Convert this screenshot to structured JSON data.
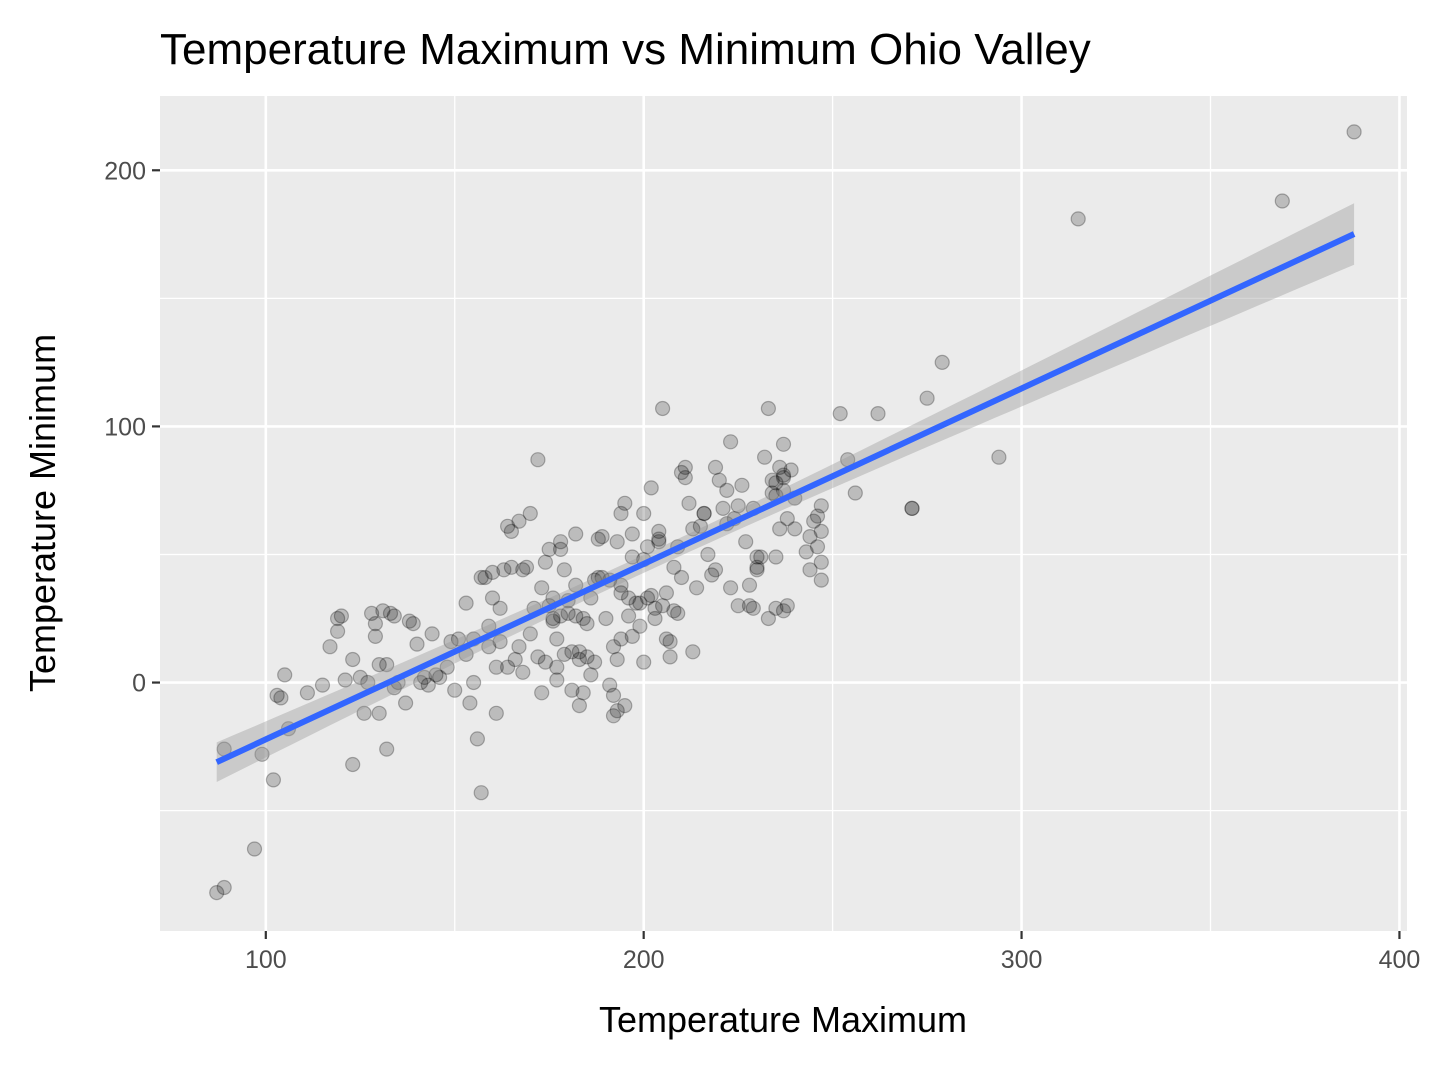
{
  "chart_data": {
    "type": "scatter",
    "title": "Temperature Maximum vs Minimum Ohio Valley",
    "xlabel": "Temperature Maximum",
    "ylabel": "Temperature Minimum",
    "xlim": [
      72,
      402
    ],
    "ylim": [
      -97,
      229
    ],
    "x_ticks": [
      100,
      200,
      300,
      400
    ],
    "x_tick_labels": [
      "100",
      "200",
      "300",
      "400"
    ],
    "y_ticks": [
      0,
      100,
      200
    ],
    "y_tick_labels": [
      "0",
      "100",
      "200"
    ],
    "grid": true,
    "legend": "none",
    "colors": {
      "panel": "#EBEBEB",
      "grid": "#FFFFFF",
      "points": "#000000",
      "fit_line": "#3366FF",
      "confidence_band": "#999999"
    },
    "points_alpha": 0.2,
    "regression": {
      "method": "linear",
      "slope": 0.6851,
      "intercept": -90.7,
      "x_range": [
        87,
        388
      ],
      "band_halfwidth_ends": 12,
      "band_halfwidth_center": 3.5,
      "center_x": 200
    },
    "points": [
      [
        87,
        -82
      ],
      [
        89,
        -80
      ],
      [
        89,
        -26
      ],
      [
        97,
        -65
      ],
      [
        99,
        -28
      ],
      [
        103,
        -5
      ],
      [
        102,
        -38
      ],
      [
        104,
        -6
      ],
      [
        105,
        3
      ],
      [
        106,
        -18
      ],
      [
        111,
        -4
      ],
      [
        115,
        -1
      ],
      [
        117,
        14
      ],
      [
        119,
        20
      ],
      [
        119,
        25
      ],
      [
        120,
        26
      ],
      [
        121,
        1
      ],
      [
        123,
        9
      ],
      [
        123,
        -32
      ],
      [
        125,
        2
      ],
      [
        126,
        -12
      ],
      [
        127,
        0
      ],
      [
        128,
        27
      ],
      [
        129,
        23
      ],
      [
        129,
        18
      ],
      [
        130,
        7
      ],
      [
        130,
        -12
      ],
      [
        131,
        28
      ],
      [
        132,
        -26
      ],
      [
        132,
        7
      ],
      [
        133,
        27
      ],
      [
        134,
        26
      ],
      [
        134,
        -2
      ],
      [
        135,
        0
      ],
      [
        137,
        -8
      ],
      [
        138,
        24
      ],
      [
        139,
        23
      ],
      [
        140,
        15
      ],
      [
        141,
        0
      ],
      [
        142,
        2
      ],
      [
        143,
        -1
      ],
      [
        144,
        19
      ],
      [
        145,
        3
      ],
      [
        146,
        2
      ],
      [
        148,
        6
      ],
      [
        149,
        16
      ],
      [
        150,
        -3
      ],
      [
        151,
        17
      ],
      [
        153,
        31
      ],
      [
        153,
        11
      ],
      [
        154,
        -8
      ],
      [
        155,
        17
      ],
      [
        155,
        0
      ],
      [
        156,
        -22
      ],
      [
        157,
        -43
      ],
      [
        157,
        41
      ],
      [
        158,
        41
      ],
      [
        159,
        22
      ],
      [
        159,
        14
      ],
      [
        160,
        33
      ],
      [
        160,
        43
      ],
      [
        161,
        -12
      ],
      [
        161,
        6
      ],
      [
        162,
        29
      ],
      [
        162,
        16
      ],
      [
        163,
        44
      ],
      [
        164,
        6
      ],
      [
        164,
        61
      ],
      [
        165,
        59
      ],
      [
        165,
        45
      ],
      [
        166,
        9
      ],
      [
        167,
        63
      ],
      [
        167,
        14
      ],
      [
        168,
        44
      ],
      [
        168,
        4
      ],
      [
        169,
        45
      ],
      [
        170,
        66
      ],
      [
        170,
        19
      ],
      [
        171,
        29
      ],
      [
        172,
        10
      ],
      [
        172,
        87
      ],
      [
        173,
        37
      ],
      [
        173,
        -4
      ],
      [
        174,
        8
      ],
      [
        174,
        47
      ],
      [
        175,
        52
      ],
      [
        175,
        30
      ],
      [
        176,
        25
      ],
      [
        176,
        33
      ],
      [
        176,
        24
      ],
      [
        177,
        6
      ],
      [
        177,
        17
      ],
      [
        177,
        1
      ],
      [
        178,
        55
      ],
      [
        178,
        52
      ],
      [
        178,
        26
      ],
      [
        179,
        44
      ],
      [
        179,
        11
      ],
      [
        180,
        27
      ],
      [
        180,
        32
      ],
      [
        181,
        -3
      ],
      [
        181,
        12
      ],
      [
        182,
        38
      ],
      [
        182,
        58
      ],
      [
        182,
        26
      ],
      [
        183,
        -9
      ],
      [
        183,
        9
      ],
      [
        183,
        12
      ],
      [
        184,
        25
      ],
      [
        184,
        -4
      ],
      [
        185,
        23
      ],
      [
        185,
        10
      ],
      [
        186,
        33
      ],
      [
        186,
        3
      ],
      [
        187,
        40
      ],
      [
        187,
        8
      ],
      [
        188,
        56
      ],
      [
        188,
        41
      ],
      [
        189,
        57
      ],
      [
        189,
        41
      ],
      [
        190,
        25
      ],
      [
        191,
        40
      ],
      [
        191,
        -1
      ],
      [
        192,
        -5
      ],
      [
        192,
        -13
      ],
      [
        192,
        14
      ],
      [
        193,
        55
      ],
      [
        193,
        9
      ],
      [
        193,
        -11
      ],
      [
        194,
        66
      ],
      [
        194,
        38
      ],
      [
        194,
        35
      ],
      [
        194,
        17
      ],
      [
        195,
        70
      ],
      [
        195,
        -9
      ],
      [
        196,
        26
      ],
      [
        196,
        33
      ],
      [
        197,
        58
      ],
      [
        197,
        49
      ],
      [
        197,
        18
      ],
      [
        198,
        31
      ],
      [
        199,
        31
      ],
      [
        199,
        22
      ],
      [
        200,
        8
      ],
      [
        200,
        48
      ],
      [
        200,
        66
      ],
      [
        201,
        53
      ],
      [
        201,
        33
      ],
      [
        202,
        76
      ],
      [
        202,
        34
      ],
      [
        203,
        29
      ],
      [
        203,
        25
      ],
      [
        204,
        59
      ],
      [
        204,
        56
      ],
      [
        204,
        55
      ],
      [
        205,
        30
      ],
      [
        205,
        107
      ],
      [
        206,
        35
      ],
      [
        206,
        17
      ],
      [
        207,
        10
      ],
      [
        207,
        16
      ],
      [
        208,
        28
      ],
      [
        208,
        45
      ],
      [
        209,
        53
      ],
      [
        209,
        27
      ],
      [
        210,
        41
      ],
      [
        210,
        82
      ],
      [
        211,
        84
      ],
      [
        211,
        80
      ],
      [
        212,
        70
      ],
      [
        213,
        12
      ],
      [
        213,
        60
      ],
      [
        214,
        37
      ],
      [
        215,
        61
      ],
      [
        216,
        66
      ],
      [
        216,
        66
      ],
      [
        217,
        50
      ],
      [
        218,
        42
      ],
      [
        219,
        44
      ],
      [
        219,
        84
      ],
      [
        220,
        79
      ],
      [
        221,
        68
      ],
      [
        222,
        75
      ],
      [
        222,
        62
      ],
      [
        223,
        37
      ],
      [
        223,
        94
      ],
      [
        224,
        64
      ],
      [
        225,
        30
      ],
      [
        225,
        69
      ],
      [
        226,
        77
      ],
      [
        227,
        55
      ],
      [
        228,
        30
      ],
      [
        228,
        38
      ],
      [
        229,
        68
      ],
      [
        229,
        29
      ],
      [
        230,
        44
      ],
      [
        230,
        45
      ],
      [
        230,
        49
      ],
      [
        231,
        49
      ],
      [
        232,
        88
      ],
      [
        233,
        25
      ],
      [
        233,
        107
      ],
      [
        234,
        79
      ],
      [
        234,
        74
      ],
      [
        235,
        78
      ],
      [
        235,
        49
      ],
      [
        235,
        29
      ],
      [
        235,
        73
      ],
      [
        236,
        84
      ],
      [
        236,
        60
      ],
      [
        237,
        80
      ],
      [
        237,
        81
      ],
      [
        237,
        93
      ],
      [
        237,
        75
      ],
      [
        237,
        28
      ],
      [
        238,
        64
      ],
      [
        238,
        30
      ],
      [
        239,
        83
      ],
      [
        240,
        72
      ],
      [
        240,
        60
      ],
      [
        243,
        51
      ],
      [
        244,
        44
      ],
      [
        244,
        57
      ],
      [
        245,
        63
      ],
      [
        246,
        53
      ],
      [
        246,
        65
      ],
      [
        247,
        59
      ],
      [
        247,
        47
      ],
      [
        247,
        40
      ],
      [
        247,
        69
      ],
      [
        252,
        105
      ],
      [
        254,
        87
      ],
      [
        256,
        74
      ],
      [
        262,
        105
      ],
      [
        271,
        68
      ],
      [
        271,
        68
      ],
      [
        275,
        111
      ],
      [
        279,
        125
      ],
      [
        294,
        88
      ],
      [
        315,
        181
      ],
      [
        369,
        188
      ],
      [
        388,
        215
      ]
    ]
  }
}
